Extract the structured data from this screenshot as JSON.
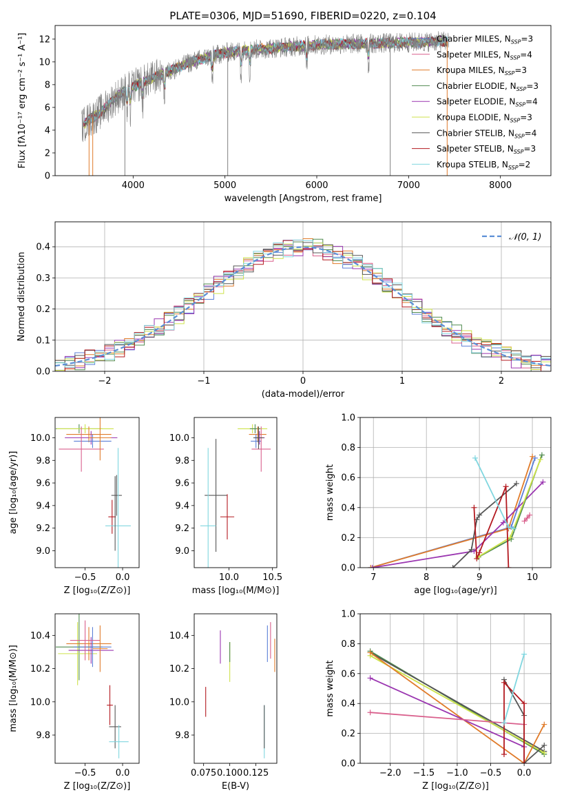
{
  "palette": {
    "chabrier_miles": "#5b7fd6",
    "salpeter_miles": "#d95f8c",
    "kroupa_miles": "#e07b2a",
    "chabrier_elodie": "#4f8a4f",
    "salpeter_elodie": "#9a35b0",
    "kroupa_elodie": "#cde24a",
    "chabrier_stelib": "#555555",
    "salpeter_stelib": "#b3181f",
    "kroupa_stelib": "#7fd6df",
    "data": "#808080",
    "normal": "#5b8ed6",
    "extra_green": "#7ec850",
    "extra_pink": "#e58cc2"
  },
  "chart_data": [
    {
      "id": "spectrum",
      "type": "line",
      "title": "PLATE=0306, MJD=51690, FIBERID=0220, z=0.104",
      "xlabel": "wavelength [Angstrom, rest frame]",
      "ylabel": "Flux [fλ10⁻¹⁷ erg cm⁻² s⁻¹ A⁻¹]",
      "xlim": [
        3150,
        8550
      ],
      "ylim": [
        0,
        13.2
      ],
      "xticks": [
        4000,
        5000,
        6000,
        7000,
        8000
      ],
      "yticks": [
        0,
        2,
        4,
        6,
        8,
        10,
        12
      ],
      "legend_position": "top-right",
      "legend": [
        {
          "label": "Chabrier MILES, N",
          "sub": "SSP",
          "tail": "=3",
          "color": "chabrier_miles"
        },
        {
          "label": "Salpeter MILES, N",
          "sub": "SSP",
          "tail": "=4",
          "color": "salpeter_miles"
        },
        {
          "label": "Kroupa MILES, N",
          "sub": "SSP",
          "tail": "=3",
          "color": "kroupa_miles"
        },
        {
          "label": "Chabrier ELODIE, N",
          "sub": "SSP",
          "tail": "=3",
          "color": "chabrier_elodie"
        },
        {
          "label": "Salpeter ELODIE, N",
          "sub": "SSP",
          "tail": "=4",
          "color": "salpeter_elodie"
        },
        {
          "label": "Kroupa ELODIE, N",
          "sub": "SSP",
          "tail": "=3",
          "color": "kroupa_elodie"
        },
        {
          "label": "Chabrier STELIB, N",
          "sub": "SSP",
          "tail": "=4",
          "color": "chabrier_stelib"
        },
        {
          "label": "Salpeter STELIB, N",
          "sub": "SSP",
          "tail": "=3",
          "color": "salpeter_stelib"
        },
        {
          "label": "Kroupa STELIB, N",
          "sub": "SSP",
          "tail": "=2",
          "color": "kroupa_stelib"
        }
      ],
      "continuum": {
        "x": [
          3450,
          3500,
          3600,
          3700,
          3800,
          3900,
          4000,
          4100,
          4200,
          4400,
          4600,
          4800,
          5000,
          5200,
          5500,
          6000,
          6500,
          7000,
          7300,
          7500
        ],
        "y": [
          4.4,
          4.8,
          5.3,
          6.0,
          6.8,
          7.4,
          7.8,
          8.2,
          8.5,
          9.2,
          9.9,
          10.4,
          10.8,
          11.0,
          11.2,
          11.5,
          11.6,
          11.7,
          11.8,
          11.8
        ]
      },
      "deep_drops": [
        3520,
        3560,
        3910,
        5030,
        6800,
        7420
      ]
    },
    {
      "id": "residuals",
      "type": "bar",
      "xlabel": "(data-model)/error",
      "ylabel": "Normed distribution",
      "xlim": [
        -2.5,
        2.5
      ],
      "ylim": [
        0,
        0.48
      ],
      "xticks": [
        -2,
        -1,
        0,
        1,
        2
      ],
      "yticks": [
        0,
        0.1,
        0.2,
        0.3,
        0.4
      ],
      "bin_width": 0.1,
      "legend": [
        {
          "label": "𝒩(0, 1)",
          "color": "normal"
        }
      ],
      "legend_position": "top-right",
      "series_colors": [
        "chabrier_miles",
        "salpeter_miles",
        "kroupa_miles",
        "chabrier_elodie",
        "salpeter_elodie",
        "kroupa_elodie",
        "chabrier_stelib",
        "salpeter_stelib",
        "kroupa_stelib"
      ]
    },
    {
      "id": "age_vs_Z",
      "type": "scatter",
      "xlabel": "Z [log₁₀(Z/Z⊙)]",
      "ylabel": "age  [log₁₀(age/yr)]",
      "xlim": [
        -0.9,
        0.22
      ],
      "ylim": [
        8.85,
        10.18
      ],
      "xticks": [
        -0.5,
        0.0
      ],
      "yticks": [
        9.0,
        9.2,
        9.4,
        9.6,
        9.8,
        10.0
      ],
      "points": [
        {
          "x": -0.58,
          "y": 10.08,
          "xerr": 0.31,
          "yerr": 0.04,
          "color": "chabrier_elodie"
        },
        {
          "x": -0.5,
          "y": 10.08,
          "xerr": 0.38,
          "yerr": 0.04,
          "color": "kroupa_elodie"
        },
        {
          "x": -0.45,
          "y": 10.03,
          "xerr": 0.3,
          "yerr": 0.07,
          "color": "kroupa_miles"
        },
        {
          "x": -0.42,
          "y": 10.0,
          "xerr": 0.35,
          "yerr": 0.06,
          "color": "salpeter_elodie"
        },
        {
          "x": -0.4,
          "y": 9.97,
          "xerr": 0.25,
          "yerr": 0.06,
          "color": "chabrier_miles"
        },
        {
          "x": -0.55,
          "y": 9.9,
          "xerr": 0.3,
          "yerr": 0.2,
          "color": "salpeter_miles"
        },
        {
          "x": -0.3,
          "y": 10.0,
          "xerr": 0.15,
          "yerr": 0.2,
          "color": "kroupa_miles"
        },
        {
          "x": -0.08,
          "y": 9.49,
          "xerr": 0.07,
          "yerr": 0.18,
          "color": "chabrier_stelib"
        },
        {
          "x": -0.14,
          "y": 9.3,
          "xerr": 0.05,
          "yerr": 0.15,
          "color": "salpeter_stelib"
        },
        {
          "x": -0.06,
          "y": 9.22,
          "xerr": 0.17,
          "yerr": 0.69,
          "color": "kroupa_stelib"
        },
        {
          "x": -0.1,
          "y": 9.33,
          "xerr": 0.0,
          "yerr": 0.33,
          "color": "chabrier_stelib"
        }
      ]
    },
    {
      "id": "age_vs_mass",
      "type": "scatter",
      "xlabel": "mass [log₁₀(M/M⊙)]",
      "ylabel": "",
      "xlim": [
        9.6,
        10.55
      ],
      "ylim": [
        8.85,
        10.18
      ],
      "xticks": [
        10.0,
        10.5
      ],
      "yticks": [
        9.0,
        9.2,
        9.4,
        9.6,
        9.8,
        10.0
      ],
      "points": [
        {
          "x": 10.27,
          "y": 10.08,
          "xerr": 0.17,
          "yerr": 0.04,
          "color": "kroupa_elodie"
        },
        {
          "x": 10.3,
          "y": 10.08,
          "xerr": 0.06,
          "yerr": 0.04,
          "color": "chabrier_elodie"
        },
        {
          "x": 10.33,
          "y": 10.03,
          "xerr": 0.1,
          "yerr": 0.07,
          "color": "kroupa_miles"
        },
        {
          "x": 10.35,
          "y": 10.0,
          "xerr": 0.06,
          "yerr": 0.06,
          "color": "salpeter_elodie"
        },
        {
          "x": 10.31,
          "y": 9.97,
          "xerr": 0.06,
          "yerr": 0.06,
          "color": "chabrier_miles"
        },
        {
          "x": 10.37,
          "y": 9.9,
          "xerr": 0.11,
          "yerr": 0.2,
          "color": "salpeter_miles"
        },
        {
          "x": 10.34,
          "y": 10.0,
          "xerr": 0.06,
          "yerr": 0.1,
          "color": "chabrier_stelib"
        },
        {
          "x": 9.85,
          "y": 9.49,
          "xerr": 0.13,
          "yerr": 0.5,
          "color": "chabrier_stelib"
        },
        {
          "x": 9.98,
          "y": 9.3,
          "xerr": 0.08,
          "yerr": 0.2,
          "color": "salpeter_stelib"
        },
        {
          "x": 9.76,
          "y": 9.22,
          "xerr": 0.09,
          "yerr": 0.69,
          "color": "kroupa_stelib"
        }
      ]
    },
    {
      "id": "weight_vs_age",
      "type": "line",
      "xlabel": "age  [log₁₀(age/yr)]",
      "ylabel": "mass weight",
      "xlim": [
        6.75,
        10.35
      ],
      "ylim": [
        0,
        1.0
      ],
      "xticks": [
        7,
        8,
        9,
        10
      ],
      "yticks": [
        0.0,
        0.2,
        0.4,
        0.6,
        0.8,
        1.0
      ],
      "series": [
        {
          "color": "chabrier_miles",
          "x": [
            6.95,
            9.6,
            10.05
          ],
          "y": [
            0.0,
            0.27,
            0.73
          ]
        },
        {
          "color": "kroupa_miles",
          "x": [
            6.95,
            9.55,
            10.0
          ],
          "y": [
            0.0,
            0.26,
            0.74
          ]
        },
        {
          "color": "salpeter_elodie",
          "x": [
            6.98,
            8.9,
            9.45,
            10.2
          ],
          "y": [
            0.0,
            0.11,
            0.3,
            0.57
          ]
        },
        {
          "color": "chabrier_elodie",
          "x": [
            8.98,
            9.6,
            10.18
          ],
          "y": [
            0.07,
            0.19,
            0.75
          ]
        },
        {
          "color": "kroupa_elodie",
          "x": [
            8.97,
            9.58,
            10.15
          ],
          "y": [
            0.07,
            0.2,
            0.72
          ]
        },
        {
          "color": "chabrier_stelib",
          "x": [
            8.5,
            8.85,
            8.95,
            9.0,
            9.7
          ],
          "y": [
            0.0,
            0.12,
            0.32,
            0.35,
            0.56
          ]
        },
        {
          "color": "salpeter_stelib",
          "x": [
            8.9,
            8.95,
            9.0,
            9.5,
            9.55
          ],
          "y": [
            0.4,
            0.06,
            0.1,
            0.54,
            0.0
          ]
        },
        {
          "color": "kroupa_stelib",
          "x": [
            8.92,
            9.55,
            9.65
          ],
          "y": [
            0.73,
            0.27,
            0.26
          ]
        },
        {
          "color": "salpeter_miles",
          "x": [
            9.85,
            9.9,
            9.95
          ],
          "y": [
            0.31,
            0.33,
            0.35
          ]
        }
      ]
    },
    {
      "id": "mass_vs_Z",
      "type": "scatter",
      "xlabel": "Z [log₁₀(Z/Z⊙)]",
      "ylabel": "mass [log₁₀(M/M⊙)]",
      "xlim": [
        -0.9,
        0.22
      ],
      "ylim": [
        9.63,
        10.53
      ],
      "xticks": [
        -0.5,
        0.0
      ],
      "yticks": [
        9.8,
        10.0,
        10.2,
        10.4
      ],
      "points": [
        {
          "x": -0.58,
          "y": 10.33,
          "xerr": 0.31,
          "yerr": 0.2,
          "color": "chabrier_elodie"
        },
        {
          "x": -0.6,
          "y": 10.29,
          "xerr": 0.26,
          "yerr": 0.19,
          "color": "kroupa_elodie"
        },
        {
          "x": -0.45,
          "y": 10.35,
          "xerr": 0.3,
          "yerr": 0.1,
          "color": "kroupa_miles"
        },
        {
          "x": -0.42,
          "y": 10.31,
          "xerr": 0.3,
          "yerr": 0.08,
          "color": "salpeter_elodie"
        },
        {
          "x": -0.4,
          "y": 10.33,
          "xerr": 0.25,
          "yerr": 0.12,
          "color": "chabrier_miles"
        },
        {
          "x": -0.5,
          "y": 10.37,
          "xerr": 0.2,
          "yerr": 0.12,
          "color": "salpeter_miles"
        },
        {
          "x": -0.3,
          "y": 10.32,
          "xerr": 0.1,
          "yerr": 0.14,
          "color": "kroupa_miles"
        },
        {
          "x": -0.1,
          "y": 9.85,
          "xerr": 0.08,
          "yerr": 0.13,
          "color": "chabrier_stelib"
        },
        {
          "x": -0.17,
          "y": 9.98,
          "xerr": 0.04,
          "yerr": 0.12,
          "color": "salpeter_stelib"
        },
        {
          "x": -0.05,
          "y": 9.76,
          "xerr": 0.13,
          "yerr": 0.1,
          "color": "kroupa_stelib"
        }
      ]
    },
    {
      "id": "mass_vs_EBV",
      "type": "scatter",
      "xlabel": "E(B-V)",
      "ylabel": "",
      "xlim": [
        0.066,
        0.145
      ],
      "ylim": [
        9.63,
        10.53
      ],
      "xticks": [
        0.075,
        0.1,
        0.125
      ],
      "xticklabels": [
        "0.075",
        "0.100",
        "0.125"
      ],
      "yticks": [
        9.8,
        10.0,
        10.2,
        10.4
      ],
      "points": [
        {
          "x": 0.077,
          "y": 10.0,
          "xerr": 0,
          "yerr": 0.09,
          "color": "salpeter_stelib"
        },
        {
          "x": 0.091,
          "y": 10.33,
          "xerr": 0,
          "yerr": 0.1,
          "color": "salpeter_elodie"
        },
        {
          "x": 0.1,
          "y": 10.24,
          "xerr": 0,
          "yerr": 0.12,
          "color": "kroupa_elodie"
        },
        {
          "x": 0.1,
          "y": 10.3,
          "xerr": 0,
          "yerr": 0.06,
          "color": "chabrier_elodie"
        },
        {
          "x": 0.133,
          "y": 9.82,
          "xerr": 0,
          "yerr": 0.16,
          "color": "kroupa_stelib"
        },
        {
          "x": 0.133,
          "y": 9.85,
          "xerr": 0,
          "yerr": 0.13,
          "color": "chabrier_stelib"
        },
        {
          "x": 0.136,
          "y": 10.35,
          "xerr": 0,
          "yerr": 0.11,
          "color": "chabrier_miles"
        },
        {
          "x": 0.139,
          "y": 10.37,
          "xerr": 0,
          "yerr": 0.11,
          "color": "salpeter_miles"
        },
        {
          "x": 0.143,
          "y": 10.28,
          "xerr": 0,
          "yerr": 0.1,
          "color": "kroupa_miles"
        }
      ]
    },
    {
      "id": "weight_vs_Z",
      "type": "line",
      "xlabel": "Z [log₁₀(Z/Z⊙)]",
      "ylabel": "mass weight",
      "xlim": [
        -2.45,
        0.4
      ],
      "ylim": [
        0,
        1.0
      ],
      "xticks": [
        -2.0,
        -1.5,
        -1.0,
        -0.5,
        0.0
      ],
      "yticks": [
        0.0,
        0.2,
        0.4,
        0.6,
        0.8,
        1.0
      ],
      "series": [
        {
          "color": "chabrier_elodie",
          "x": [
            -2.3,
            0.3
          ],
          "y": [
            0.75,
            0.06
          ]
        },
        {
          "color": "chabrier_stelib",
          "x": [
            -2.3,
            0.3
          ],
          "y": [
            0.74,
            0.08
          ]
        },
        {
          "color": "kroupa_elodie",
          "x": [
            -2.3,
            0.3
          ],
          "y": [
            0.72,
            0.07
          ]
        },
        {
          "color": "kroupa_miles",
          "x": [
            -2.3,
            0.0,
            0.3
          ],
          "y": [
            0.74,
            0.0,
            0.26
          ]
        },
        {
          "color": "salpeter_elodie",
          "x": [
            -2.3,
            0.0
          ],
          "y": [
            0.57,
            0.11
          ]
        },
        {
          "color": "salpeter_miles",
          "x": [
            -2.3,
            0.0
          ],
          "y": [
            0.34,
            0.26
          ]
        },
        {
          "color": "chabrier_stelib",
          "x": [
            -0.3,
            0.0,
            0.0,
            0.3
          ],
          "y": [
            0.56,
            0.32,
            0.0,
            0.12
          ]
        },
        {
          "color": "salpeter_stelib",
          "x": [
            -0.3,
            -0.3,
            0.0,
            0.0
          ],
          "y": [
            0.06,
            0.54,
            0.4,
            0.0
          ]
        },
        {
          "color": "kroupa_stelib",
          "x": [
            -0.3,
            0.0
          ],
          "y": [
            0.27,
            0.73
          ]
        }
      ]
    }
  ]
}
